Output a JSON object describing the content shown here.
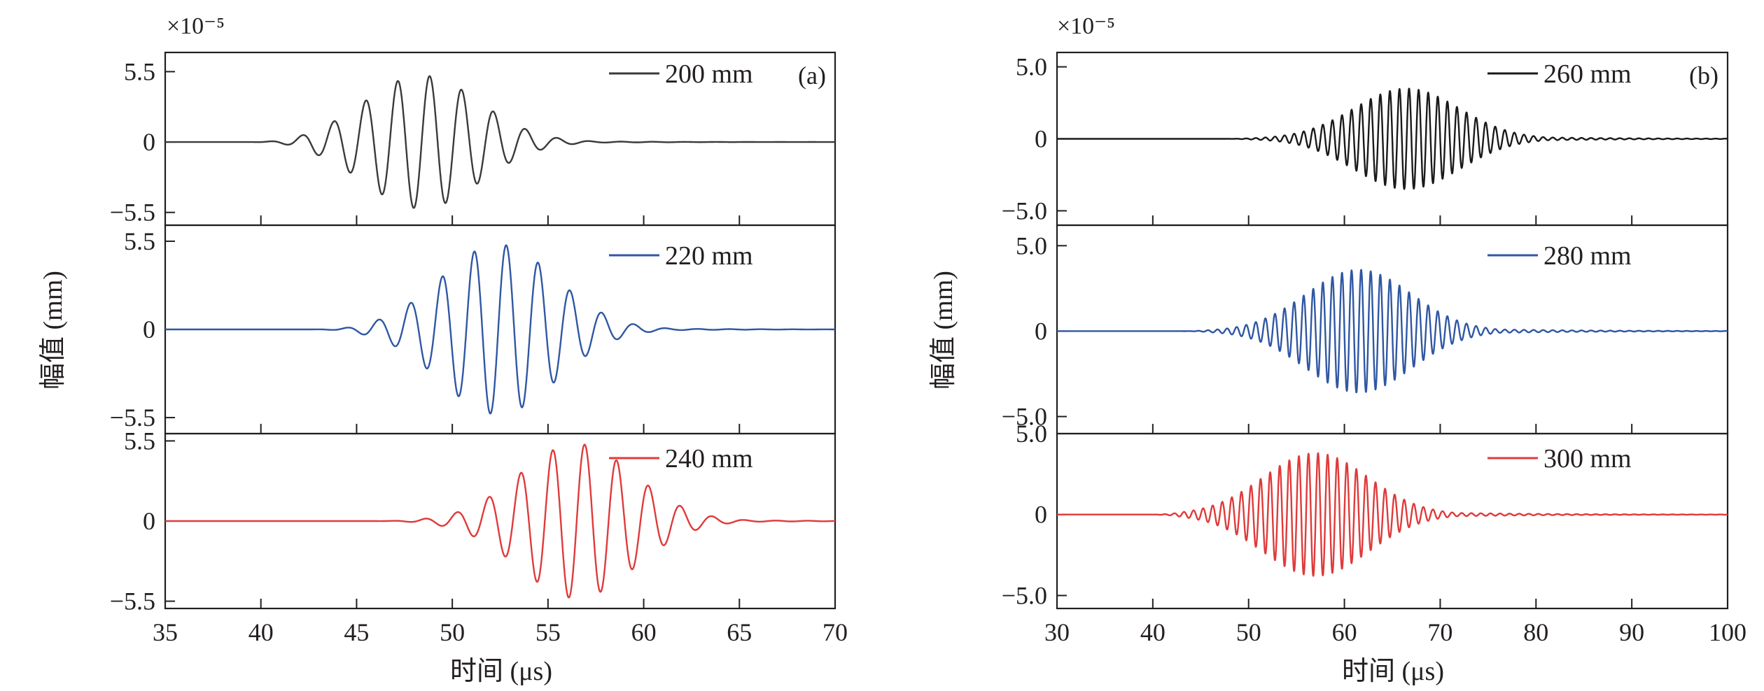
{
  "chart_data": [
    {
      "type": "line",
      "panel_label": "(a)",
      "multiplier": "×10⁻⁵",
      "xlabel": "时间 (μs)",
      "ylabel": "幅值 (mm)",
      "xlim": [
        35,
        70
      ],
      "x_ticks": [
        35,
        40,
        45,
        50,
        55,
        60,
        65,
        70
      ],
      "x_tick_labels": [
        "35",
        "40",
        "45",
        "50",
        "55",
        "60",
        "65",
        "70"
      ],
      "grid": false,
      "subplots": [
        {
          "name": "200 mm",
          "color": "#3a3a3a",
          "ylim": [
            -6.5,
            7.0
          ],
          "y_ticks": [
            -5.5,
            0,
            5.5
          ],
          "y_tick_labels": [
            "−5.5",
            "0",
            "5.5"
          ],
          "carrier_freq_mhz": 0.6,
          "onset": 39.5,
          "center": 48.4,
          "peak": 5.2,
          "width": 3.0,
          "decay": 3.5,
          "legend_position": "top-right"
        },
        {
          "name": "220 mm",
          "color": "#2f57a3",
          "ylim": [
            -6.5,
            6.5
          ],
          "y_ticks": [
            -5.5,
            0,
            5.5
          ],
          "y_tick_labels": [
            "−5.5",
            "0",
            "5.5"
          ],
          "carrier_freq_mhz": 0.6,
          "onset": 42.5,
          "center": 52.4,
          "peak": 5.3,
          "width": 3.0,
          "decay": 3.5,
          "legend_position": "top-right"
        },
        {
          "name": "240 mm",
          "color": "#e03a3a",
          "ylim": [
            -6.0,
            6.0
          ],
          "y_ticks": [
            -5.5,
            0,
            5.5
          ],
          "y_tick_labels": [
            "−5.5",
            "0",
            "5.5"
          ],
          "carrier_freq_mhz": 0.6,
          "onset": 45.5,
          "center": 56.5,
          "peak": 5.3,
          "width": 3.0,
          "decay": 3.5,
          "legend_position": "top-right"
        }
      ]
    },
    {
      "type": "line",
      "panel_label": "(b)",
      "multiplier": "×10⁻⁵",
      "xlabel": "时间 (μs)",
      "ylabel": "幅值 (mm)",
      "xlim": [
        30,
        100
      ],
      "x_ticks": [
        30,
        40,
        50,
        60,
        70,
        80,
        90,
        100
      ],
      "x_tick_labels": [
        "30",
        "40",
        "50",
        "60",
        "70",
        "80",
        "90",
        "100"
      ],
      "grid": false,
      "subplots": [
        {
          "name": "260 mm",
          "color": "#1a1a1a",
          "ylim": [
            -6.0,
            6.0
          ],
          "y_ticks": [
            -5.0,
            0,
            5.0
          ],
          "y_tick_labels": [
            "−5.0",
            "0",
            "5.0"
          ],
          "carrier_freq_mhz": 1.0,
          "onset": 47.0,
          "center": 66.5,
          "peak": 3.5,
          "width": 5.5,
          "decay": 10.0,
          "legend_position": "top-right"
        },
        {
          "name": "280 mm",
          "color": "#2f57a3",
          "ylim": [
            -6.0,
            6.2
          ],
          "y_ticks": [
            -5.0,
            0,
            5.0
          ],
          "y_tick_labels": [
            "−5.0",
            "0",
            "5.0"
          ],
          "carrier_freq_mhz": 1.0,
          "onset": 43.0,
          "center": 61.5,
          "peak": 3.6,
          "width": 5.5,
          "decay": 10.0,
          "legend_position": "top-right"
        },
        {
          "name": "300 mm",
          "color": "#e03a3a",
          "ylim": [
            -5.8,
            5.0
          ],
          "y_ticks": [
            -5.0,
            0,
            5.0
          ],
          "y_tick_labels": [
            "−5.0",
            "0",
            "5.0"
          ],
          "carrier_freq_mhz": 1.0,
          "onset": 40.0,
          "center": 57.0,
          "peak": 3.8,
          "width": 5.5,
          "decay": 10.0,
          "legend_position": "top-right"
        }
      ]
    }
  ]
}
